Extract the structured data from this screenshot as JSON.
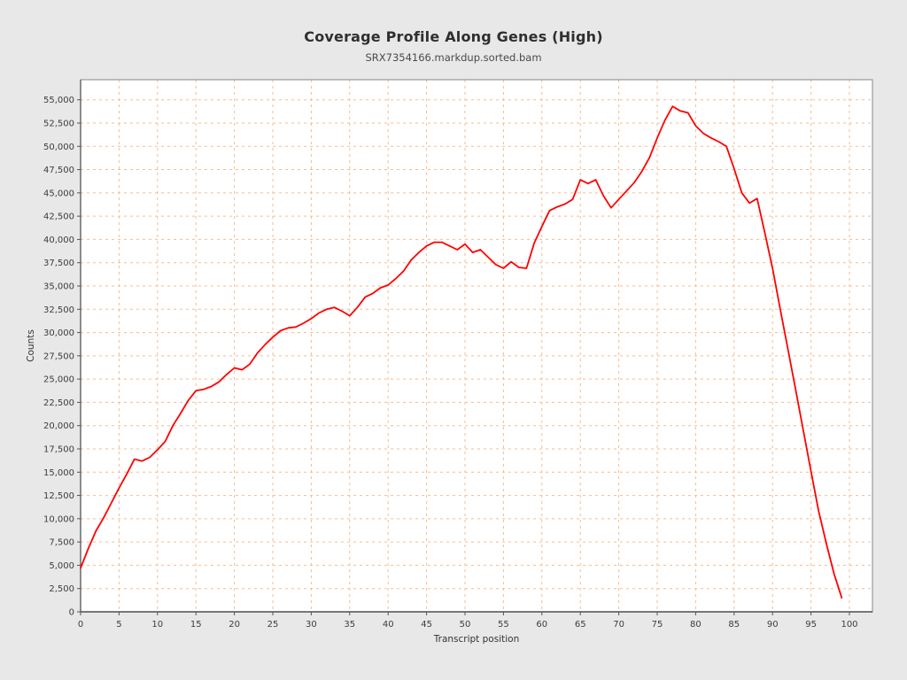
{
  "header": {
    "title": "Coverage Profile Along Genes (High)",
    "subtitle": "SRX7354166.markdup.sorted.bam"
  },
  "chart_data": {
    "type": "line",
    "title": "Coverage Profile Along Genes (High)",
    "subtitle": "SRX7354166.markdup.sorted.bam",
    "xlabel": "Transcript position",
    "ylabel": "Counts",
    "xlim": [
      0,
      103
    ],
    "ylim": [
      0,
      57200
    ],
    "x_ticks": [
      0,
      5,
      10,
      15,
      20,
      25,
      30,
      35,
      40,
      45,
      50,
      55,
      60,
      65,
      70,
      75,
      80,
      85,
      90,
      95,
      100
    ],
    "y_ticks": [
      0,
      2500,
      5000,
      7500,
      10000,
      12500,
      15000,
      17500,
      20000,
      22500,
      25000,
      27500,
      30000,
      32500,
      35000,
      37500,
      40000,
      42500,
      45000,
      47500,
      50000,
      52500,
      55000
    ],
    "grid": "dashed",
    "legend_position": "none",
    "series": [
      {
        "name": "SRX7354166.markdup.sorted.bam",
        "color": "#ff0000",
        "x": [
          0,
          1,
          2,
          3,
          4,
          5,
          6,
          7,
          8,
          9,
          10,
          11,
          12,
          13,
          14,
          15,
          16,
          17,
          18,
          19,
          20,
          21,
          22,
          23,
          24,
          25,
          26,
          27,
          28,
          29,
          30,
          31,
          32,
          33,
          34,
          35,
          36,
          37,
          38,
          39,
          40,
          41,
          42,
          43,
          44,
          45,
          46,
          47,
          48,
          49,
          50,
          51,
          52,
          53,
          54,
          55,
          56,
          57,
          58,
          59,
          60,
          61,
          62,
          63,
          64,
          65,
          66,
          67,
          68,
          69,
          70,
          71,
          72,
          73,
          74,
          75,
          76,
          77,
          78,
          79,
          80,
          81,
          82,
          83,
          84,
          85,
          86,
          87,
          88,
          89,
          90,
          91,
          92,
          93,
          94,
          95,
          96,
          97,
          98,
          99
        ],
        "values": [
          4700,
          6800,
          8700,
          10100,
          11700,
          13300,
          14800,
          16400,
          16200,
          16600,
          17400,
          18300,
          20000,
          21300,
          22700,
          23750,
          23900,
          24200,
          24700,
          25500,
          26200,
          26000,
          26600,
          27800,
          28700,
          29500,
          30200,
          30500,
          30600,
          31000,
          31500,
          32100,
          32500,
          32700,
          32300,
          31800,
          32700,
          33800,
          34200,
          34800,
          35100,
          35800,
          36600,
          37800,
          38600,
          39300,
          39700,
          39700,
          39300,
          38900,
          39500,
          38600,
          38900,
          38100,
          37300,
          36900,
          37600,
          37000,
          36900,
          39600,
          41400,
          43100,
          43500,
          43800,
          44300,
          46400,
          46000,
          46400,
          44700,
          43400,
          44300,
          45200,
          46100,
          47300,
          48800,
          50900,
          52800,
          54300,
          53800,
          53600,
          52200,
          51400,
          50900,
          50500,
          50000,
          47600,
          45000,
          43900,
          44400,
          40700,
          36900,
          32500,
          28200,
          23900,
          19500,
          15100,
          10800,
          7300,
          4100,
          1500
        ]
      }
    ]
  },
  "colors": {
    "page_background": "#e8e8e8",
    "plot_background": "#ffffff",
    "grid": "#f2bd91",
    "frame": "#9a9a9a",
    "axis": "#545454",
    "line": "#ff0000",
    "title": "#2f2f2f",
    "tick_text": "#3c3c3c"
  }
}
